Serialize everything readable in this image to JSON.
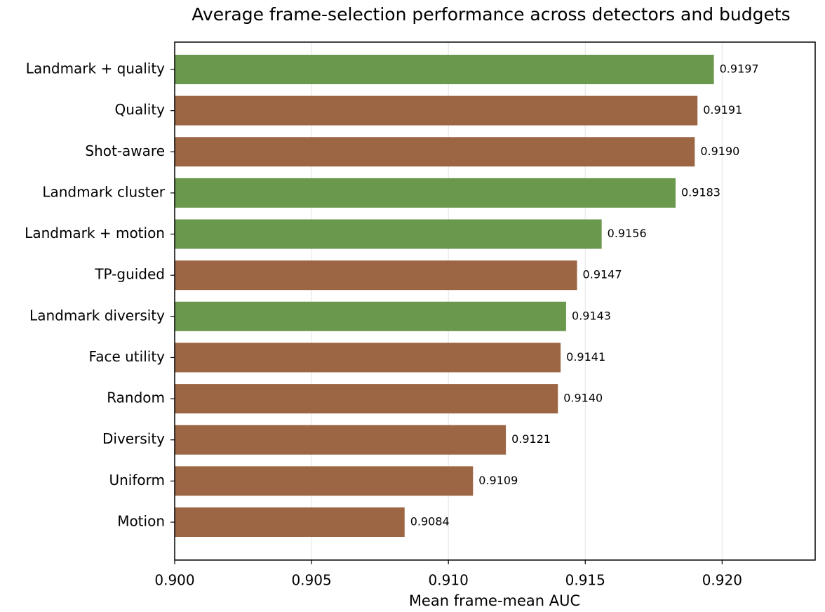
{
  "chart_data": {
    "type": "barh",
    "title": "Average frame-selection performance across detectors and budgets",
    "x_label": "Mean frame-mean AUC",
    "categories": [
      "Landmark + quality",
      "Quality",
      "Shot-aware",
      "Landmark cluster",
      "Landmark + motion",
      "TP-guided",
      "Landmark diversity",
      "Face utility",
      "Random",
      "Diversity",
      "Uniform",
      "Motion"
    ],
    "values": [
      0.9197,
      0.9191,
      0.919,
      0.9183,
      0.9156,
      0.9147,
      0.9143,
      0.9141,
      0.914,
      0.9121,
      0.9109,
      0.9084
    ],
    "value_labels": [
      "0.9197",
      "0.9191",
      "0.9190",
      "0.9183",
      "0.9156",
      "0.9147",
      "0.9143",
      "0.9141",
      "0.9140",
      "0.9121",
      "0.9109",
      "0.9084"
    ],
    "colors": [
      "#6a994e",
      "#9c6644",
      "#9c6644",
      "#6a994e",
      "#6a994e",
      "#9c6644",
      "#6a994e",
      "#9c6644",
      "#9c6644",
      "#9c6644",
      "#9c6644",
      "#9c6644"
    ],
    "xlim": [
      0.9,
      0.9234
    ],
    "xticks": [
      {
        "value": 0.9,
        "label": "0.900"
      },
      {
        "value": 0.905,
        "label": "0.905"
      },
      {
        "value": 0.91,
        "label": "0.910"
      },
      {
        "value": 0.915,
        "label": "0.915"
      },
      {
        "value": 0.92,
        "label": "0.920"
      }
    ],
    "grid": true
  }
}
